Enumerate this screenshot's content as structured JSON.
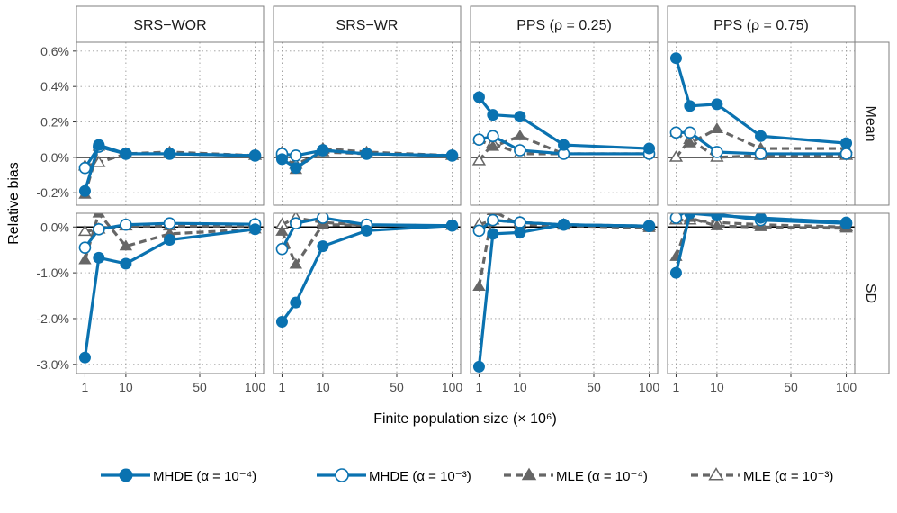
{
  "chart_data": {
    "type": "line",
    "xlabel": "Finite population size (× 10⁶)",
    "ylabel": "Relative bias",
    "x_ticks": [
      1,
      10,
      50,
      100
    ],
    "x_scale": "sqrt",
    "columns": [
      "SRS−WOR",
      "SRS−WR",
      "PPS (ρ = 0.25)",
      "PPS (ρ = 0.75)"
    ],
    "rows": [
      {
        "label": "Mean",
        "ylim": [
          -0.27,
          0.65
        ],
        "ticks": [
          0.6,
          0.4,
          0.2,
          0.0,
          -0.2
        ],
        "tick_labels": [
          "0.6%",
          "0.4%",
          "0.2%",
          "0.0%",
          "-0.2%"
        ]
      },
      {
        "label": "SD",
        "ylim": [
          -3.2,
          0.3
        ],
        "ticks": [
          0.0,
          -1.0,
          -2.0,
          -3.0
        ],
        "tick_labels": [
          "0.0%",
          "-1.0%",
          "-2.0%",
          "-3.0%"
        ]
      }
    ],
    "x": [
      1,
      3,
      10,
      30,
      100
    ],
    "series_styles": [
      {
        "name": "MHDE (α = 10⁻⁴)",
        "color": "#0a72b0",
        "dash": "solid",
        "marker": "filled-circle"
      },
      {
        "name": "MHDE (α = 10⁻³)",
        "color": "#0a72b0",
        "dash": "solid",
        "marker": "open-circle"
      },
      {
        "name": "MLE (α = 10⁻⁴)",
        "color": "#666666",
        "dash": "dashed",
        "marker": "filled-triangle"
      },
      {
        "name": "MLE (α = 10⁻³)",
        "color": "#666666",
        "dash": "dashed",
        "marker": "open-triangle"
      }
    ],
    "panels": [
      {
        "row": "Mean",
        "column": "SRS−WOR",
        "values": [
          [
            -0.19,
            0.07,
            0.02,
            0.02,
            0.01
          ],
          [
            -0.06,
            0.06,
            0.02,
            0.02,
            0.01
          ],
          [
            -0.21,
            0.06,
            0.02,
            0.03,
            0.01
          ],
          [
            -0.05,
            -0.03,
            0.02,
            0.02,
            0.01
          ]
        ]
      },
      {
        "row": "Mean",
        "column": "SRS−WR",
        "values": [
          [
            -0.01,
            -0.06,
            0.04,
            0.02,
            0.01
          ],
          [
            0.02,
            0.01,
            0.04,
            0.02,
            0.01
          ],
          [
            0.03,
            -0.07,
            0.05,
            0.03,
            0.01
          ],
          [
            0.02,
            -0.04,
            0.03,
            0.02,
            0.01
          ]
        ]
      },
      {
        "row": "Mean",
        "column": "PPS (ρ = 0.25)",
        "values": [
          [
            0.34,
            0.24,
            0.23,
            0.07,
            0.05
          ],
          [
            0.1,
            0.12,
            0.04,
            0.02,
            0.02
          ],
          [
            0.1,
            0.06,
            0.12,
            0.02,
            0.02
          ],
          [
            -0.02,
            0.08,
            0.02,
            0.02,
            0.02
          ]
        ]
      },
      {
        "row": "Mean",
        "column": "PPS (ρ = 0.75)",
        "values": [
          [
            0.56,
            0.29,
            0.3,
            0.12,
            0.08
          ],
          [
            0.14,
            0.14,
            0.03,
            0.02,
            0.02
          ],
          [
            0.14,
            0.08,
            0.16,
            0.05,
            0.05
          ],
          [
            0.0,
            0.1,
            0.0,
            0.01,
            0.01
          ]
        ]
      },
      {
        "row": "SD",
        "column": "SRS−WOR",
        "values": [
          [
            -2.85,
            -0.67,
            -0.8,
            -0.28,
            -0.05
          ],
          [
            -0.45,
            -0.05,
            0.05,
            0.08,
            0.06
          ],
          [
            -0.72,
            0.3,
            -0.42,
            -0.15,
            -0.05
          ],
          [
            -0.1,
            -0.05,
            0.02,
            0.02,
            0.02
          ]
        ]
      },
      {
        "row": "SD",
        "column": "SRS−WR",
        "values": [
          [
            -2.07,
            -1.65,
            -0.42,
            -0.08,
            0.03
          ],
          [
            -0.48,
            0.08,
            0.2,
            0.05,
            0.03
          ],
          [
            -0.1,
            -0.82,
            0.05,
            0.04,
            0.03
          ],
          [
            0.05,
            0.2,
            0.1,
            0.04,
            0.03
          ]
        ]
      },
      {
        "row": "SD",
        "column": "PPS (ρ = 0.25)",
        "values": [
          [
            -3.05,
            -0.15,
            -0.12,
            0.05,
            0.02
          ],
          [
            -0.08,
            0.15,
            0.1,
            0.05,
            0.02
          ],
          [
            -1.3,
            0.35,
            0.05,
            0.03,
            -0.02
          ],
          [
            0.05,
            0.15,
            0.1,
            0.05,
            0.02
          ]
        ]
      },
      {
        "row": "SD",
        "column": "PPS (ρ = 0.75)",
        "values": [
          [
            -1.0,
            0.3,
            0.25,
            0.2,
            0.1
          ],
          [
            0.2,
            0.4,
            0.28,
            0.15,
            0.08
          ],
          [
            -0.65,
            0.2,
            0.02,
            0.0,
            -0.03
          ],
          [
            0.15,
            0.15,
            0.1,
            0.05,
            0.0
          ]
        ]
      }
    ],
    "zero_line": true,
    "grid": "dotted",
    "legend_position": "bottom"
  }
}
